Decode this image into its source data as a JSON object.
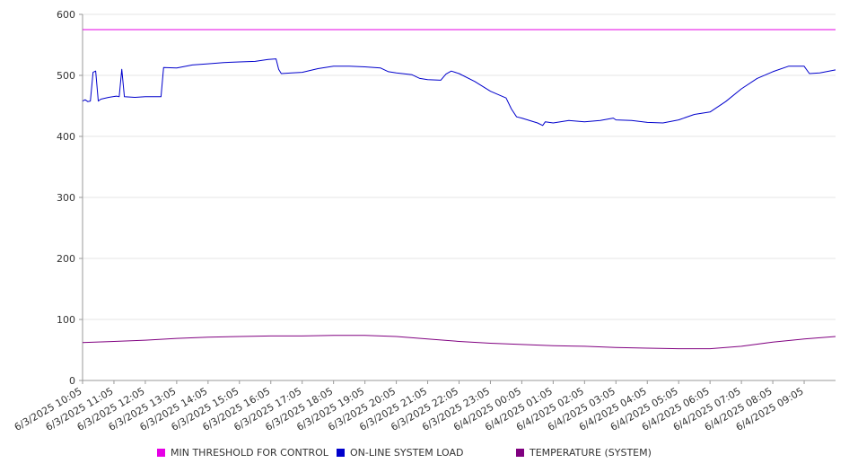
{
  "chart_data": {
    "type": "line",
    "title": "",
    "xlabel": "",
    "ylabel": "",
    "ylim": [
      0,
      600
    ],
    "yticks": [
      0,
      100,
      200,
      300,
      400,
      500,
      600
    ],
    "grid": "horizontal",
    "legend_position": "bottom",
    "x_tick_labels": [
      "6/3/2025 10:05",
      "6/3/2025 11:05",
      "6/3/2025 12:05",
      "6/3/2025 13:05",
      "6/3/2025 14:05",
      "6/3/2025 15:05",
      "6/3/2025 16:05",
      "6/3/2025 17:05",
      "6/3/2025 18:05",
      "6/3/2025 19:05",
      "6/3/2025 20:05",
      "6/3/2025 21:05",
      "6/3/2025 22:05",
      "6/3/2025 23:05",
      "6/4/2025 00:05",
      "6/4/2025 01:05",
      "6/4/2025 02:05",
      "6/4/2025 03:05",
      "6/4/2025 04:05",
      "6/4/2025 05:05",
      "6/4/2025 06:05",
      "6/4/2025 07:05",
      "6/4/2025 08:05",
      "6/4/2025 09:05"
    ],
    "series": [
      {
        "name": "MIN THRESHOLD FOR CONTROL",
        "color": "#e600e6",
        "points": [
          [
            "6/3/2025 10:05",
            575
          ],
          [
            "6/4/2025 10:05",
            575
          ]
        ]
      },
      {
        "name": "ON-LINE SYSTEM LOAD",
        "color": "#0000cc",
        "points": [
          [
            "6/3/2025 10:05",
            458
          ],
          [
            "6/3/2025 10:10",
            460
          ],
          [
            "6/3/2025 10:15",
            457
          ],
          [
            "6/3/2025 10:20",
            458
          ],
          [
            "6/3/2025 10:25",
            505
          ],
          [
            "6/3/2025 10:30",
            507
          ],
          [
            "6/3/2025 10:35",
            458
          ],
          [
            "6/3/2025 10:40",
            461
          ],
          [
            "6/3/2025 10:55",
            464
          ],
          [
            "6/3/2025 11:10",
            466
          ],
          [
            "6/3/2025 11:15",
            465
          ],
          [
            "6/3/2025 11:20",
            510
          ],
          [
            "6/3/2025 11:25",
            465
          ],
          [
            "6/3/2025 11:45",
            464
          ],
          [
            "6/3/2025 12:05",
            465
          ],
          [
            "6/3/2025 12:35",
            465
          ],
          [
            "6/3/2025 12:40",
            513
          ],
          [
            "6/3/2025 13:05",
            512
          ],
          [
            "6/3/2025 13:35",
            517
          ],
          [
            "6/3/2025 14:05",
            519
          ],
          [
            "6/3/2025 14:35",
            521
          ],
          [
            "6/3/2025 15:05",
            522
          ],
          [
            "6/3/2025 15:35",
            523
          ],
          [
            "6/3/2025 16:00",
            526
          ],
          [
            "6/3/2025 16:15",
            527
          ],
          [
            "6/3/2025 16:20",
            510
          ],
          [
            "6/3/2025 16:25",
            503
          ],
          [
            "6/3/2025 16:45",
            504
          ],
          [
            "6/3/2025 17:05",
            505
          ],
          [
            "6/3/2025 17:35",
            511
          ],
          [
            "6/3/2025 18:05",
            515
          ],
          [
            "6/3/2025 18:35",
            515
          ],
          [
            "6/3/2025 19:05",
            514
          ],
          [
            "6/3/2025 19:35",
            512
          ],
          [
            "6/3/2025 19:50",
            506
          ],
          [
            "6/3/2025 20:05",
            504
          ],
          [
            "6/3/2025 20:35",
            501
          ],
          [
            "6/3/2025 20:50",
            495
          ],
          [
            "6/3/2025 21:05",
            493
          ],
          [
            "6/3/2025 21:30",
            492
          ],
          [
            "6/3/2025 21:40",
            502
          ],
          [
            "6/3/2025 21:50",
            507
          ],
          [
            "6/3/2025 22:05",
            503
          ],
          [
            "6/3/2025 22:35",
            490
          ],
          [
            "6/3/2025 23:05",
            474
          ],
          [
            "6/3/2025 23:35",
            463
          ],
          [
            "6/3/2025 23:45",
            445
          ],
          [
            "6/3/2025 23:55",
            432
          ],
          [
            "6/4/2025 00:05",
            430
          ],
          [
            "6/4/2025 00:35",
            422
          ],
          [
            "6/4/2025 00:45",
            418
          ],
          [
            "6/4/2025 00:50",
            424
          ],
          [
            "6/4/2025 01:05",
            422
          ],
          [
            "6/4/2025 01:35",
            426
          ],
          [
            "6/4/2025 02:05",
            424
          ],
          [
            "6/4/2025 02:35",
            426
          ],
          [
            "6/4/2025 03:00",
            430
          ],
          [
            "6/4/2025 03:05",
            427
          ],
          [
            "6/4/2025 03:35",
            426
          ],
          [
            "6/4/2025 04:05",
            423
          ],
          [
            "6/4/2025 04:35",
            422
          ],
          [
            "6/4/2025 05:05",
            427
          ],
          [
            "6/4/2025 05:35",
            436
          ],
          [
            "6/4/2025 06:05",
            440
          ],
          [
            "6/4/2025 06:35",
            457
          ],
          [
            "6/4/2025 07:05",
            478
          ],
          [
            "6/4/2025 07:35",
            495
          ],
          [
            "6/4/2025 08:05",
            506
          ],
          [
            "6/4/2025 08:35",
            515
          ],
          [
            "6/4/2025 09:05",
            515
          ],
          [
            "6/4/2025 09:15",
            503
          ],
          [
            "6/4/2025 09:35",
            504
          ],
          [
            "6/4/2025 10:05",
            509
          ]
        ]
      },
      {
        "name": "TEMPERATURE (SYSTEM)",
        "color": "#800080",
        "points": [
          [
            "6/3/2025 10:05",
            62
          ],
          [
            "6/3/2025 11:05",
            64
          ],
          [
            "6/3/2025 12:05",
            66
          ],
          [
            "6/3/2025 13:05",
            69
          ],
          [
            "6/3/2025 14:05",
            71
          ],
          [
            "6/3/2025 15:05",
            72
          ],
          [
            "6/3/2025 16:05",
            73
          ],
          [
            "6/3/2025 17:05",
            73
          ],
          [
            "6/3/2025 18:05",
            74
          ],
          [
            "6/3/2025 19:05",
            74
          ],
          [
            "6/3/2025 20:05",
            72
          ],
          [
            "6/3/2025 21:05",
            68
          ],
          [
            "6/3/2025 22:05",
            64
          ],
          [
            "6/3/2025 23:05",
            61
          ],
          [
            "6/4/2025 00:05",
            59
          ],
          [
            "6/4/2025 01:05",
            57
          ],
          [
            "6/4/2025 02:05",
            56
          ],
          [
            "6/4/2025 03:05",
            54
          ],
          [
            "6/4/2025 04:05",
            53
          ],
          [
            "6/4/2025 05:05",
            52
          ],
          [
            "6/4/2025 06:05",
            52
          ],
          [
            "6/4/2025 07:05",
            56
          ],
          [
            "6/4/2025 08:05",
            63
          ],
          [
            "6/4/2025 09:05",
            68
          ],
          [
            "6/4/2025 10:05",
            72
          ]
        ]
      }
    ]
  }
}
